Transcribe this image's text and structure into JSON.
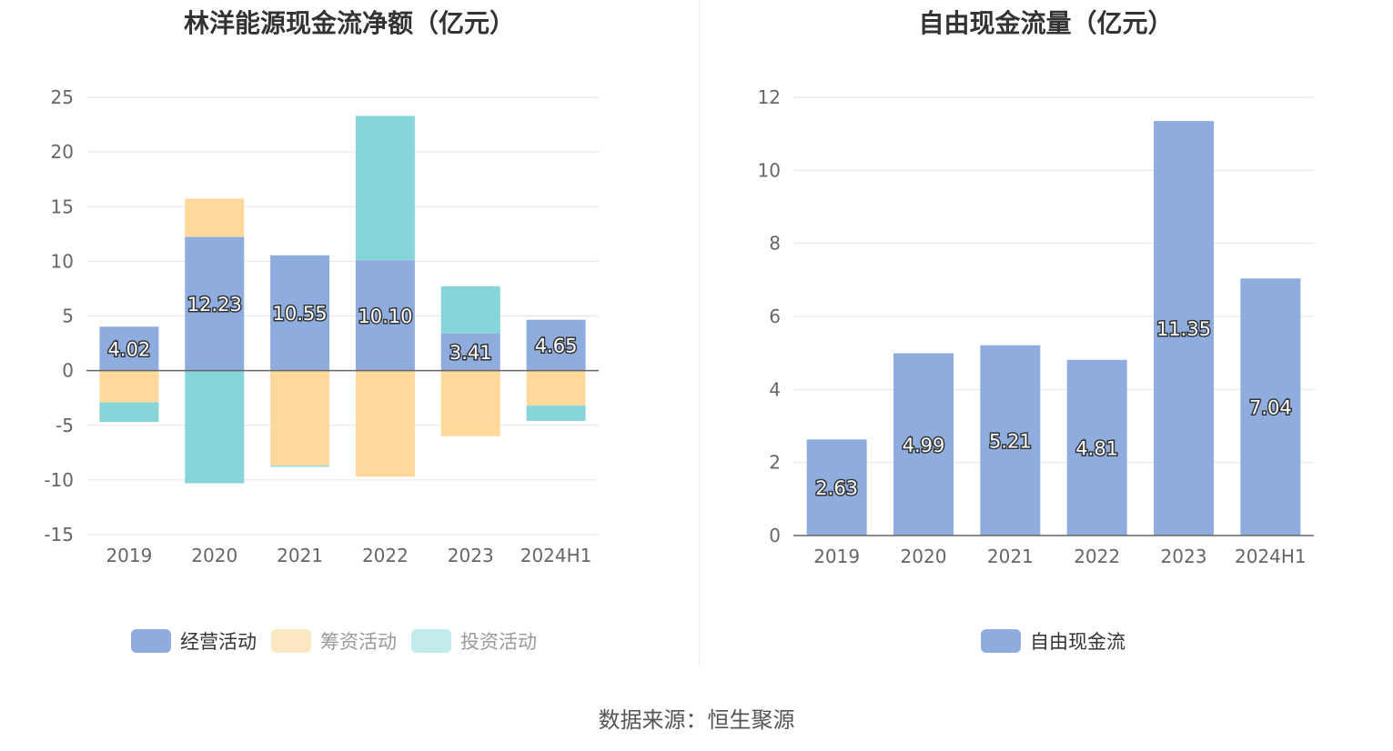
{
  "source": "数据来源：恒生聚源",
  "colors": {
    "operating": "#8eadde",
    "financing": "#fed99b",
    "investing": "#86d6d9",
    "fcf": "#8eadde",
    "grid": "#e3e6ee",
    "axis": "#666666"
  },
  "legend_left": [
    {
      "label": "经营活动",
      "color": "#8eadde",
      "dim": false
    },
    {
      "label": "筹资活动",
      "color": "#fde8c4",
      "dim": true
    },
    {
      "label": "投资活动",
      "color": "#c2ebec",
      "dim": true
    }
  ],
  "legend_right": [
    {
      "label": "自由现金流",
      "color": "#8eadde",
      "dim": false
    }
  ],
  "chart_data": [
    {
      "type": "bar",
      "stacked": true,
      "title": "林洋能源现金流净额（亿元）",
      "categories": [
        "2019",
        "2020",
        "2021",
        "2022",
        "2023",
        "2024H1"
      ],
      "ylim": [
        -15,
        25
      ],
      "yticks": [
        25,
        20,
        15,
        10,
        5,
        0,
        -5,
        -10,
        -15
      ],
      "grid": true,
      "legend_position": "bottom",
      "series": [
        {
          "name": "经营活动",
          "values": [
            4.02,
            12.23,
            10.55,
            10.1,
            3.41,
            4.65
          ],
          "labels": [
            "4.02",
            "12.23",
            "10.55",
            "10.10",
            "3.41",
            "4.65"
          ]
        },
        {
          "name": "筹资活动",
          "values": [
            -2.9,
            3.5,
            -8.7,
            -9.7,
            -6.0,
            -3.2
          ]
        },
        {
          "name": "投资活动",
          "values": [
            -1.8,
            -10.3,
            -0.1,
            13.2,
            4.3,
            -1.4
          ]
        }
      ]
    },
    {
      "type": "bar",
      "title": "自由现金流量（亿元）",
      "categories": [
        "2019",
        "2020",
        "2021",
        "2022",
        "2023",
        "2024H1"
      ],
      "ylim": [
        0,
        12
      ],
      "yticks": [
        12,
        10,
        8,
        6,
        4,
        2,
        0
      ],
      "grid": true,
      "legend_position": "bottom",
      "series": [
        {
          "name": "自由现金流",
          "values": [
            2.63,
            4.99,
            5.21,
            4.81,
            11.35,
            7.04
          ],
          "labels": [
            "2.63",
            "4.99",
            "5.21",
            "4.81",
            "11.35",
            "7.04"
          ]
        }
      ]
    }
  ]
}
